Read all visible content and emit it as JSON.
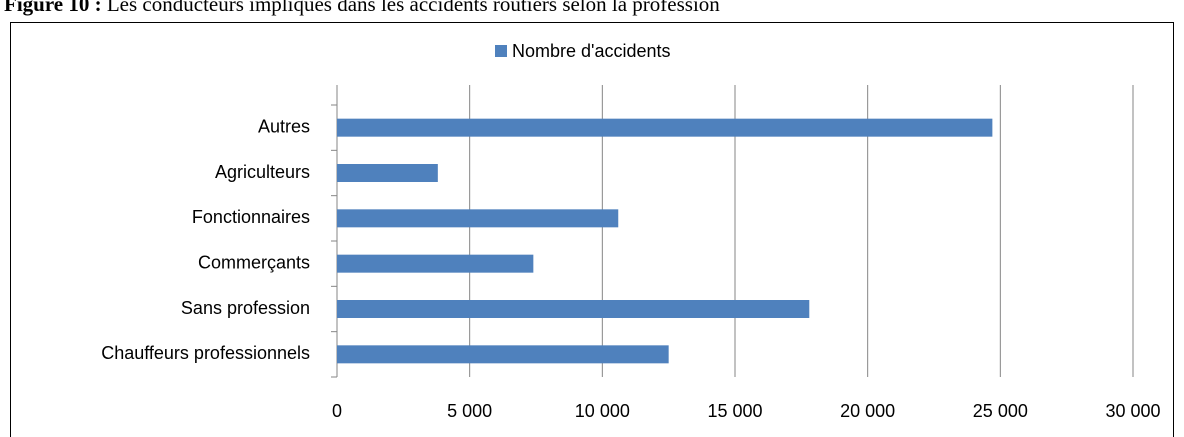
{
  "chart_data": {
    "type": "barh",
    "figure_label": "Figure 10 :",
    "title": "Les conducteurs impliqués dans les accidents routiers selon la profession",
    "categories": [
      "Chauffeurs professionnels",
      "Sans profession",
      "Commerçants",
      "Fonctionnaires",
      "Agriculteurs",
      "Autres"
    ],
    "series": [
      {
        "name": "Nombre d'accidents",
        "color": "#4f81bd",
        "values": [
          12500,
          17800,
          7400,
          10600,
          3800,
          24700
        ]
      }
    ],
    "xlim": [
      0,
      30000
    ],
    "xticks": [
      0,
      {
        "value": 5000,
        "label": "5 000"
      },
      {
        "value": 10000,
        "label": "10 000"
      },
      {
        "value": 15000,
        "label": "15 000"
      },
      {
        "value": 20000,
        "label": "20 000"
      },
      {
        "value": 25000,
        "label": "25 000"
      },
      {
        "value": 30000,
        "label": "30 000"
      }
    ],
    "grid": true,
    "legend": "top"
  }
}
